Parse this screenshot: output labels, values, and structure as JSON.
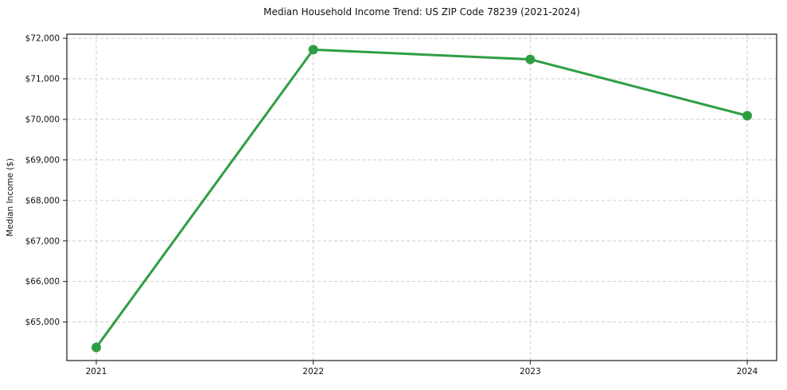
{
  "chart_data": {
    "type": "line",
    "title": "Median Household Income Trend: US ZIP Code 78239 (2021-2024)",
    "xlabel": "",
    "ylabel": "Median Income ($)",
    "x": [
      "2021",
      "2022",
      "2023",
      "2024"
    ],
    "series": [
      {
        "name": "Median Household Income",
        "values": [
          64375,
          71720,
          71480,
          70090
        ]
      }
    ],
    "ylim": [
      64050,
      72100
    ],
    "yticks": [
      65000,
      66000,
      67000,
      68000,
      69000,
      70000,
      71000,
      72000
    ],
    "ytick_labels": [
      "$65,000",
      "$66,000",
      "$67,000",
      "$68,000",
      "$69,000",
      "$70,000",
      "$71,000",
      "$72,000"
    ],
    "xtick_labels": [
      "2021",
      "2022",
      "2023",
      "2024"
    ],
    "grid": true,
    "legend_position": "none",
    "line_color": "#2e9e44",
    "marker": "circle",
    "background_color": "#ffffff",
    "text_color": "#111111",
    "grid_color": "#cdcdcd"
  }
}
